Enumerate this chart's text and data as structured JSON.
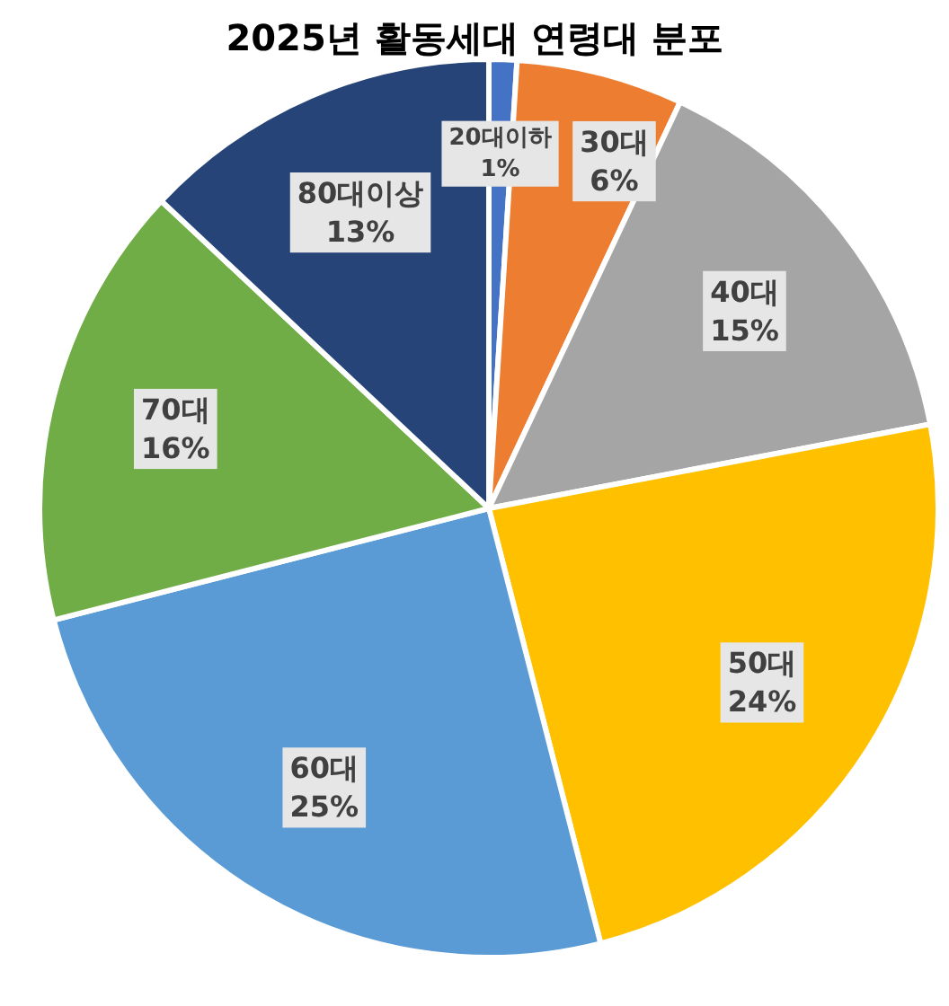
{
  "chart_data": {
    "type": "pie",
    "title": "2025년 활동세대 연령대 분포",
    "categories": [
      "20대이하",
      "30대",
      "40대",
      "50대",
      "60대",
      "70대",
      "80대이상"
    ],
    "values": [
      1,
      6,
      15,
      24,
      25,
      16,
      13
    ],
    "value_labels": [
      "1%",
      "6%",
      "15%",
      "24%",
      "25%",
      "16%",
      "13%"
    ],
    "colors": [
      "#4472c4",
      "#ed7d31",
      "#a5a5a5",
      "#ffc000",
      "#5b9bd5",
      "#70ad47",
      "#264478"
    ]
  }
}
